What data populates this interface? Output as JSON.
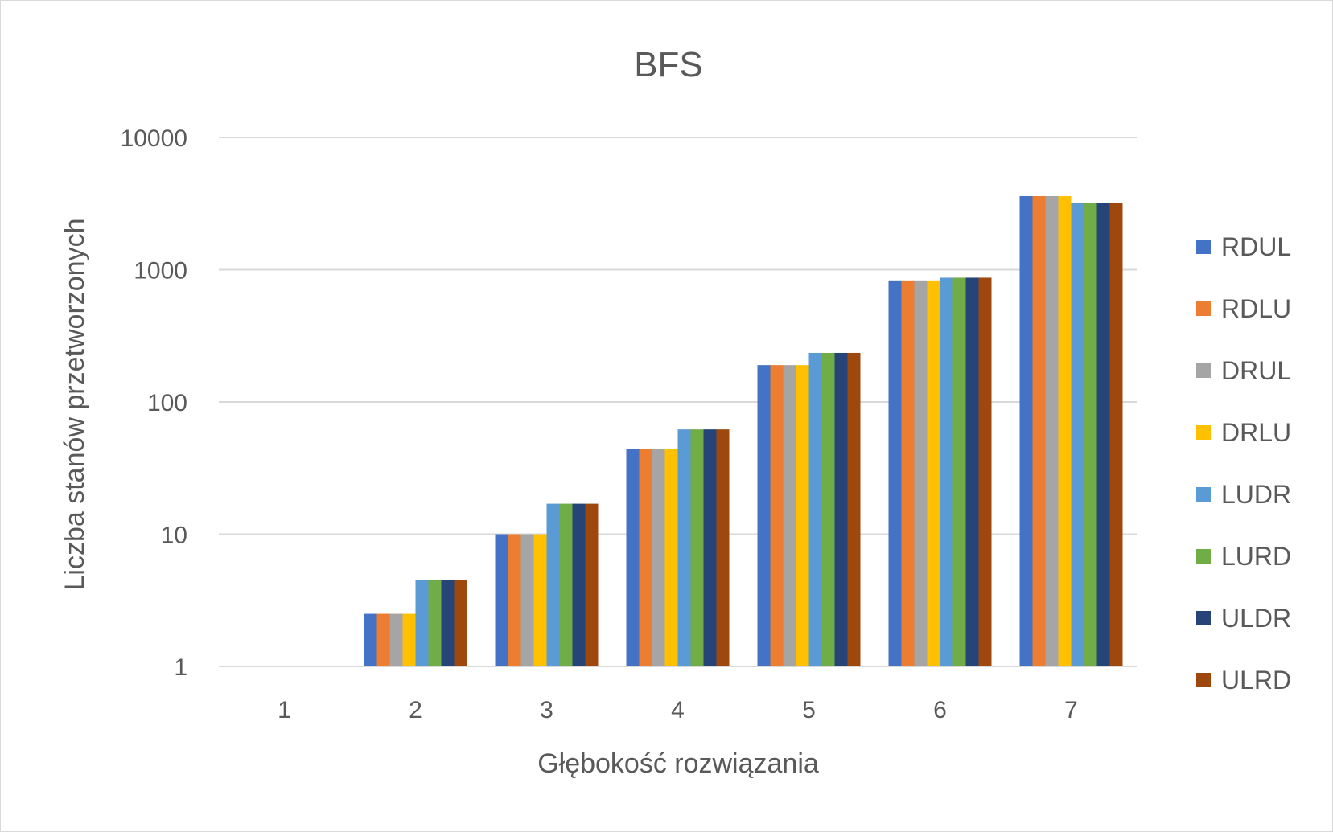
{
  "chart_data": {
    "type": "bar",
    "title": "BFS",
    "xlabel": "Głębokość rozwiązania",
    "ylabel": "Liczba stanów przetworzonych",
    "yscale": "log",
    "ylim": [
      1,
      10000
    ],
    "yticks": [
      "1",
      "10",
      "100",
      "1000",
      "10000"
    ],
    "grid": true,
    "legend_position": "right",
    "categories": [
      "1",
      "2",
      "3",
      "4",
      "5",
      "6",
      "7"
    ],
    "series": [
      {
        "name": "RDUL",
        "color": "#4472C4",
        "values": [
          1,
          2.5,
          10,
          44,
          190,
          830,
          3600
        ]
      },
      {
        "name": "RDLU",
        "color": "#ED7D31",
        "values": [
          1,
          2.5,
          10,
          44,
          190,
          830,
          3600
        ]
      },
      {
        "name": "DRUL",
        "color": "#A5A5A5",
        "values": [
          1,
          2.5,
          10,
          44,
          190,
          830,
          3600
        ]
      },
      {
        "name": "DRLU",
        "color": "#FFC000",
        "values": [
          1,
          2.5,
          10,
          44,
          190,
          830,
          3600
        ]
      },
      {
        "name": "LUDR",
        "color": "#5B9BD5",
        "values": [
          1,
          4.5,
          17,
          62,
          235,
          870,
          3200
        ]
      },
      {
        "name": "LURD",
        "color": "#70AD47",
        "values": [
          1,
          4.5,
          17,
          62,
          235,
          870,
          3200
        ]
      },
      {
        "name": "ULDR",
        "color": "#264478",
        "values": [
          1,
          4.5,
          17,
          62,
          235,
          870,
          3200
        ]
      },
      {
        "name": "ULRD",
        "color": "#9E480E",
        "values": [
          1,
          4.5,
          17,
          62,
          235,
          870,
          3200
        ]
      }
    ]
  }
}
